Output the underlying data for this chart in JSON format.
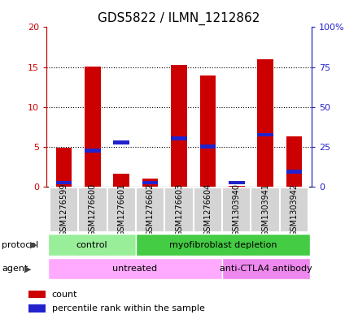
{
  "title": "GDS5822 / ILMN_1212862",
  "samples": [
    "GSM1276599",
    "GSM1276600",
    "GSM1276601",
    "GSM1276602",
    "GSM1276603",
    "GSM1276604",
    "GSM1303940",
    "GSM1303941",
    "GSM1303942"
  ],
  "counts": [
    4.9,
    15.1,
    1.6,
    1.0,
    15.3,
    13.9,
    0.05,
    16.0,
    6.3
  ],
  "percentile_ranks": [
    2.5,
    22.5,
    27.5,
    2.5,
    30.0,
    25.0,
    2.5,
    32.5,
    9.5
  ],
  "left_ylim": [
    0,
    20
  ],
  "right_ylim": [
    0,
    100
  ],
  "left_yticks": [
    0,
    5,
    10,
    15,
    20
  ],
  "right_yticks": [
    0,
    25,
    50,
    75,
    100
  ],
  "left_yticklabels": [
    "0",
    "5",
    "10",
    "15",
    "20"
  ],
  "right_yticklabels": [
    "0",
    "25",
    "50",
    "75",
    "100%"
  ],
  "bar_color": "#cc0000",
  "percentile_color": "#2222cc",
  "bar_width": 0.55,
  "protocol_color_light": "#99ee99",
  "protocol_color_dark": "#44cc44",
  "agent_color_untreated": "#ffaaff",
  "agent_color_antibody": "#ee88ee",
  "legend_count_color": "#cc0000",
  "legend_percentile_color": "#2222cc",
  "left_axis_color": "#cc0000",
  "right_axis_color": "#2222cc",
  "title_fontsize": 11,
  "tick_fontsize": 8,
  "label_fontsize": 8,
  "sample_fontsize": 7,
  "arrow_color": "#444444"
}
